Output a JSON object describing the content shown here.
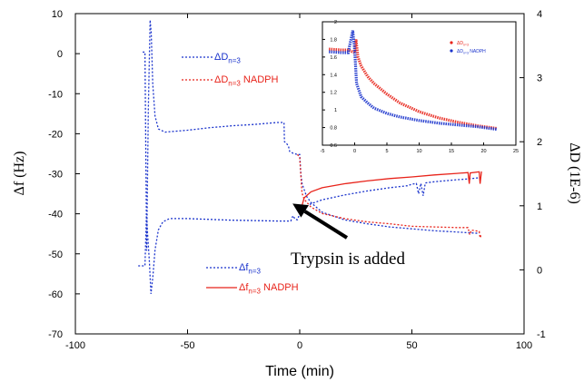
{
  "chart_data": {
    "type": "line",
    "xlabel": "Time (min)",
    "ylabel_left": "Δf (Hz)",
    "ylabel_right": "ΔD (1E-6)",
    "xlim": [
      -100,
      100
    ],
    "ylim_left": [
      -70,
      10
    ],
    "ylim_right": [
      -1,
      4
    ],
    "x_ticks": [
      "-100",
      "-50",
      "0",
      "50",
      "100"
    ],
    "y_left_ticks": [
      "10",
      "0",
      "-10",
      "-20",
      "-30",
      "-40",
      "-50",
      "-60",
      "-70"
    ],
    "y_right_ticks": [
      "4",
      "3",
      "2",
      "1",
      "0",
      "-1"
    ],
    "annotation": "Trypsin is added",
    "annotation_point": [
      -4,
      -37
    ],
    "legend_top": [
      {
        "sym": "ΔD",
        "sub": "n=3",
        "suffix": "",
        "color": "#1a33cc"
      },
      {
        "sym": "ΔD",
        "sub": "n=3",
        "suffix": " NADPH",
        "color": "#e8231a"
      }
    ],
    "legend_bottom": [
      {
        "sym": "Δf",
        "sub": "n=3",
        "suffix": "",
        "color": "#1a33cc"
      },
      {
        "sym": "Δf",
        "sub": "n=3",
        "suffix": " NADPH",
        "color": "#e8231a"
      }
    ],
    "series": [
      {
        "name": "ΔD n=3",
        "axis": "right",
        "color": "#1a33cc",
        "dash": "2,2",
        "points": [
          [
            -70,
            3.4
          ],
          [
            -69,
            3.4
          ],
          [
            -68.2,
            0.3
          ],
          [
            -67.5,
            2.5
          ],
          [
            -66.7,
            3.9
          ],
          [
            -66.2,
            3.7
          ],
          [
            -65.5,
            2.9
          ],
          [
            -64.5,
            2.4
          ],
          [
            -63,
            2.2
          ],
          [
            -60,
            2.15
          ],
          [
            -50,
            2.18
          ],
          [
            -40,
            2.22
          ],
          [
            -30,
            2.25
          ],
          [
            -20,
            2.27
          ],
          [
            -10,
            2.3
          ],
          [
            -7,
            2.3
          ],
          [
            -6.8,
            2.0
          ],
          [
            -6,
            1.98
          ],
          [
            -5,
            1.93
          ],
          [
            -4.5,
            1.85
          ],
          [
            -3,
            1.82
          ],
          [
            -1,
            1.8
          ],
          [
            0,
            1.8
          ],
          [
            0.5,
            1.5
          ],
          [
            1,
            1.35
          ],
          [
            3,
            1.15
          ],
          [
            5,
            1.05
          ],
          [
            10,
            0.9
          ],
          [
            20,
            0.78
          ],
          [
            30,
            0.72
          ],
          [
            40,
            0.67
          ],
          [
            50,
            0.64
          ],
          [
            60,
            0.61
          ],
          [
            70,
            0.59
          ],
          [
            80,
            0.57
          ]
        ]
      },
      {
        "name": "ΔD n=3 NADPH",
        "axis": "right",
        "color": "#e8231a",
        "dash": "2,2",
        "points": [
          [
            -1,
            1.8
          ],
          [
            0,
            1.75
          ],
          [
            1,
            1.2
          ],
          [
            2,
            1.1
          ],
          [
            5,
            0.98
          ],
          [
            10,
            0.88
          ],
          [
            20,
            0.8
          ],
          [
            30,
            0.75
          ],
          [
            40,
            0.72
          ],
          [
            50,
            0.68
          ],
          [
            60,
            0.67
          ],
          [
            70,
            0.66
          ],
          [
            75,
            0.66
          ],
          [
            75.8,
            0.55
          ],
          [
            76.5,
            0.62
          ],
          [
            80,
            0.6
          ],
          [
            80.4,
            0.5
          ],
          [
            81,
            0.56
          ]
        ]
      },
      {
        "name": "Δf n=3",
        "axis": "left",
        "color": "#1a33cc",
        "dash": "2,2",
        "points": [
          [
            -72,
            -53
          ],
          [
            -69,
            -53
          ],
          [
            -68.3,
            -40
          ],
          [
            -67.8,
            -45
          ],
          [
            -67,
            -52
          ],
          [
            -66.3,
            -60
          ],
          [
            -65.5,
            -56
          ],
          [
            -64.5,
            -49
          ],
          [
            -63,
            -44
          ],
          [
            -61,
            -42
          ],
          [
            -58,
            -41.2
          ],
          [
            -50,
            -41.2
          ],
          [
            -40,
            -41.4
          ],
          [
            -30,
            -41.6
          ],
          [
            -20,
            -41.7
          ],
          [
            -10,
            -41.8
          ],
          [
            -4,
            -41.8
          ],
          [
            -3,
            -40.5
          ],
          [
            -2,
            -41.4
          ],
          [
            -1,
            -41.5
          ],
          [
            0,
            -40
          ],
          [
            2,
            -38.5
          ],
          [
            5,
            -37.5
          ],
          [
            10,
            -36.5
          ],
          [
            20,
            -35.3
          ],
          [
            30,
            -34.3
          ],
          [
            40,
            -33.5
          ],
          [
            48,
            -33
          ],
          [
            50,
            -32.6
          ],
          [
            52,
            -32.4
          ],
          [
            53,
            -35
          ],
          [
            54,
            -32.4
          ],
          [
            55,
            -35.5
          ],
          [
            56,
            -32.3
          ],
          [
            60,
            -32
          ],
          [
            70,
            -31.5
          ],
          [
            75,
            -31.3
          ],
          [
            80,
            -31
          ]
        ]
      },
      {
        "name": "Δf n=3 NADPH",
        "axis": "left",
        "color": "#e8231a",
        "dash": "",
        "points": [
          [
            0,
            -40
          ],
          [
            2,
            -36
          ],
          [
            5,
            -34.5
          ],
          [
            10,
            -33.5
          ],
          [
            20,
            -32.5
          ],
          [
            30,
            -31.8
          ],
          [
            40,
            -31.2
          ],
          [
            50,
            -30.8
          ],
          [
            60,
            -30.3
          ],
          [
            70,
            -29.9
          ],
          [
            75,
            -29.7
          ],
          [
            75.6,
            -32.5
          ],
          [
            76,
            -29.8
          ],
          [
            80,
            -29.5
          ],
          [
            80.4,
            -32.5
          ],
          [
            81,
            -29.4
          ]
        ]
      }
    ],
    "inset": {
      "xlim": [
        -5,
        25
      ],
      "ylim": [
        0.6,
        2.0
      ],
      "x_ticks": [
        "-5",
        "0",
        "5",
        "10",
        "15",
        "20",
        "25"
      ],
      "y_ticks": [
        "2",
        "1.8",
        "1.6",
        "1.4",
        "1.2",
        "1",
        "0.8",
        "0.6"
      ],
      "legend": [
        {
          "sym": "ΔD",
          "sub": "n=3",
          "suffix": "",
          "color": "#e8231a"
        },
        {
          "sym": "ΔD",
          "sub": "n=3",
          "suffix": " NADPH",
          "color": "#1a33cc"
        }
      ],
      "series": [
        {
          "name": "inset ΔD n=3",
          "color": "#e8231a",
          "points": [
            [
              -4,
              1.69
            ],
            [
              -2,
              1.68
            ],
            [
              -1,
              1.68
            ],
            [
              0,
              1.65
            ],
            [
              0.2,
              1.8
            ],
            [
              0.5,
              1.6
            ],
            [
              1,
              1.5
            ],
            [
              2,
              1.38
            ],
            [
              3,
              1.3
            ],
            [
              5,
              1.18
            ],
            [
              7,
              1.08
            ],
            [
              10,
              0.98
            ],
            [
              13,
              0.91
            ],
            [
              16,
              0.86
            ],
            [
              19,
              0.82
            ],
            [
              22,
              0.79
            ]
          ]
        },
        {
          "name": "inset ΔD n=3 NADPH",
          "color": "#1a33cc",
          "points": [
            [
              -4,
              1.66
            ],
            [
              -2,
              1.65
            ],
            [
              -1,
              1.65
            ],
            [
              -0.3,
              1.9
            ],
            [
              0,
              1.68
            ],
            [
              0.3,
              1.3
            ],
            [
              1,
              1.15
            ],
            [
              2,
              1.08
            ],
            [
              3,
              1.02
            ],
            [
              5,
              0.96
            ],
            [
              7,
              0.92
            ],
            [
              10,
              0.88
            ],
            [
              13,
              0.85
            ],
            [
              16,
              0.83
            ],
            [
              19,
              0.81
            ],
            [
              22,
              0.78
            ]
          ]
        }
      ]
    }
  }
}
